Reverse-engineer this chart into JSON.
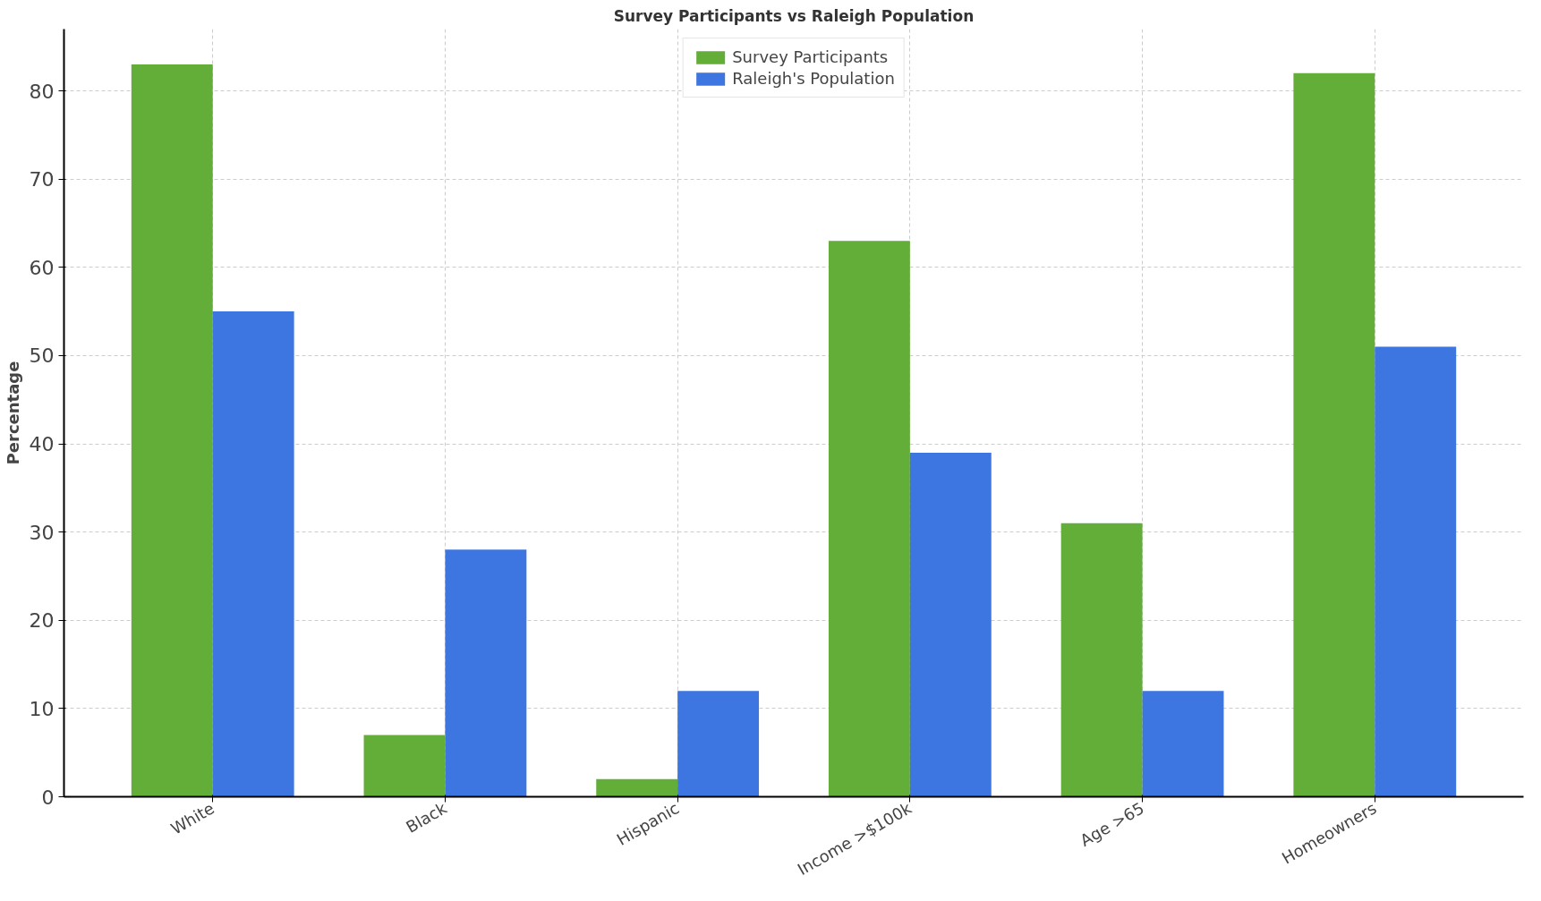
{
  "chart_data": {
    "type": "bar",
    "title": "Survey Participants vs Raleigh Population",
    "ylabel": "Percentage",
    "categories": [
      "White",
      "Black",
      "Hispanic",
      "Income >$100k",
      "Age >65",
      "Homeowners"
    ],
    "series": [
      {
        "name": "Survey Participants",
        "color": "#62ae38",
        "values": [
          83,
          7,
          2,
          63,
          31,
          82
        ]
      },
      {
        "name": "Raleigh's Population",
        "color": "#3d76e0",
        "values": [
          55,
          28,
          12,
          39,
          12,
          51
        ]
      }
    ],
    "ylim": [
      0,
      87
    ],
    "yticks": [
      0,
      10,
      20,
      30,
      40,
      50,
      60,
      70,
      80
    ],
    "grid": true,
    "legend": "top"
  }
}
